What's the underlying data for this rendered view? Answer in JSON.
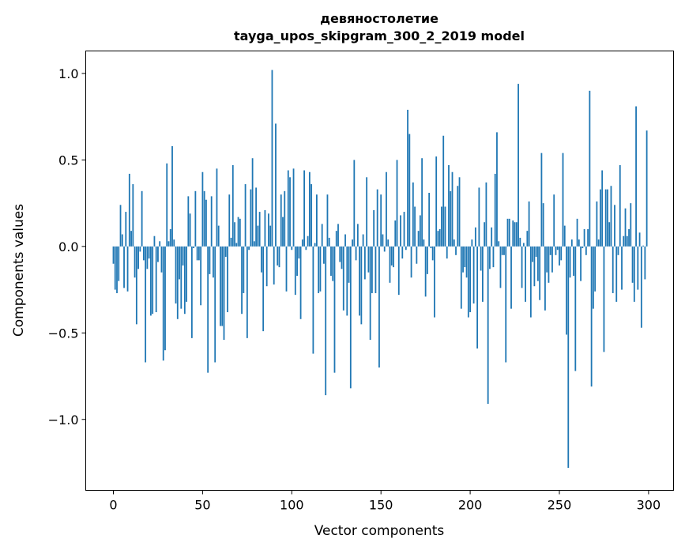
{
  "chart_data": {
    "type": "bar",
    "title": "девяностолетие",
    "subtitle": "tayga_upos_skipgram_300_2_2019 model",
    "xlabel": "Vector components",
    "ylabel": "Components values",
    "xlim": [
      -15.5,
      314
    ],
    "ylim": [
      -1.41,
      1.13
    ],
    "grid": false,
    "color": "#1f77b4",
    "xticks": [
      0,
      50,
      100,
      150,
      200,
      250,
      300
    ],
    "xtick_labels": [
      "0",
      "50",
      "100",
      "150",
      "200",
      "250",
      "300"
    ],
    "yticks": [
      -1.0,
      -0.5,
      0.0,
      0.5,
      1.0
    ],
    "ytick_labels": [
      "−1.0",
      "−0.5",
      "0.0",
      "0.5",
      "1.0"
    ],
    "values": [
      -0.1,
      -0.25,
      -0.27,
      -0.2,
      0.24,
      0.07,
      -0.24,
      0.2,
      -0.26,
      0.42,
      0.09,
      0.36,
      -0.18,
      -0.45,
      -0.13,
      -0.03,
      0.32,
      -0.08,
      -0.67,
      -0.13,
      -0.07,
      -0.4,
      -0.39,
      0.06,
      -0.38,
      -0.09,
      0.03,
      -0.15,
      -0.66,
      -0.6,
      0.48,
      0.03,
      0.1,
      0.58,
      0.04,
      -0.33,
      -0.42,
      -0.19,
      -0.36,
      -0.11,
      -0.39,
      -0.32,
      0.29,
      0.19,
      -0.53,
      -0.01,
      0.32,
      -0.08,
      -0.08,
      -0.34,
      0.43,
      0.32,
      0.27,
      -0.73,
      -0.16,
      0.29,
      -0.18,
      -0.67,
      0.45,
      0.12,
      -0.46,
      -0.46,
      -0.54,
      -0.06,
      -0.38,
      0.3,
      0.05,
      0.47,
      0.14,
      0.02,
      0.17,
      0.16,
      -0.39,
      -0.27,
      0.36,
      -0.53,
      -0.02,
      0.33,
      0.51,
      0.03,
      0.34,
      0.12,
      0.2,
      -0.15,
      -0.49,
      0.21,
      -0.23,
      0.19,
      0.12,
      1.02,
      -0.22,
      0.71,
      -0.11,
      -0.12,
      0.3,
      0.17,
      0.32,
      -0.26,
      0.44,
      0.4,
      -0.02,
      0.45,
      -0.28,
      -0.17,
      -0.07,
      -0.42,
      0.04,
      0.44,
      -0.02,
      0.06,
      0.43,
      0.36,
      -0.62,
      0.02,
      0.3,
      -0.27,
      -0.26,
      0.13,
      -0.1,
      -0.86,
      0.3,
      0.05,
      -0.17,
      -0.2,
      -0.73,
      0.09,
      0.13,
      -0.09,
      -0.13,
      -0.37,
      0.07,
      -0.4,
      -0.21,
      -0.82,
      0.04,
      0.5,
      -0.08,
      0.13,
      -0.4,
      -0.45,
      0.07,
      -0.19,
      0.4,
      -0.15,
      -0.54,
      -0.27,
      0.21,
      -0.27,
      0.33,
      -0.7,
      0.3,
      0.07,
      -0.03,
      0.43,
      0.04,
      -0.21,
      -0.11,
      -0.12,
      0.15,
      0.5,
      -0.28,
      0.18,
      -0.07,
      0.2,
      -0.02,
      0.79,
      0.65,
      -0.18,
      0.37,
      0.23,
      -0.1,
      0.09,
      0.18,
      0.51,
      0.04,
      -0.29,
      -0.16,
      0.31,
      -0.01,
      -0.08,
      -0.41,
      0.52,
      0.09,
      0.1,
      0.23,
      0.64,
      0.23,
      -0.07,
      0.47,
      0.32,
      0.43,
      0.04,
      -0.05,
      0.35,
      0.4,
      -0.36,
      -0.15,
      -0.12,
      -0.18,
      -0.41,
      -0.38,
      0.04,
      -0.33,
      0.11,
      -0.59,
      0.34,
      -0.14,
      -0.32,
      0.14,
      0.37,
      -0.91,
      -0.13,
      0.11,
      -0.12,
      0.42,
      0.66,
      0.03,
      -0.24,
      -0.05,
      -0.05,
      -0.67,
      0.16,
      0.16,
      -0.36,
      0.15,
      0.14,
      0.14,
      0.94,
      0.05,
      -0.24,
      0.02,
      -0.32,
      0.09,
      0.26,
      -0.41,
      -0.09,
      -0.23,
      -0.06,
      -0.2,
      -0.31,
      0.54,
      0.25,
      -0.37,
      -0.15,
      -0.21,
      -0.05,
      -0.15,
      0.3,
      -0.05,
      -0.02,
      -0.11,
      -0.08,
      0.54,
      0.12,
      -0.51,
      -1.28,
      -0.18,
      0.04,
      -0.17,
      -0.72,
      0.16,
      0.04,
      -0.2,
      -0.01,
      0.1,
      -0.05,
      0.1,
      0.9,
      -0.81,
      -0.36,
      -0.26,
      0.26,
      0.04,
      0.33,
      0.44,
      -0.61,
      0.33,
      0.33,
      0.14,
      0.35,
      -0.27,
      0.24,
      -0.32,
      -0.05,
      0.47,
      -0.25,
      0.06,
      0.22,
      0.06,
      0.1,
      0.25,
      -0.21,
      -0.32,
      0.81,
      -0.25,
      0.08,
      -0.47,
      0.005,
      -0.19,
      0.67
    ]
  }
}
